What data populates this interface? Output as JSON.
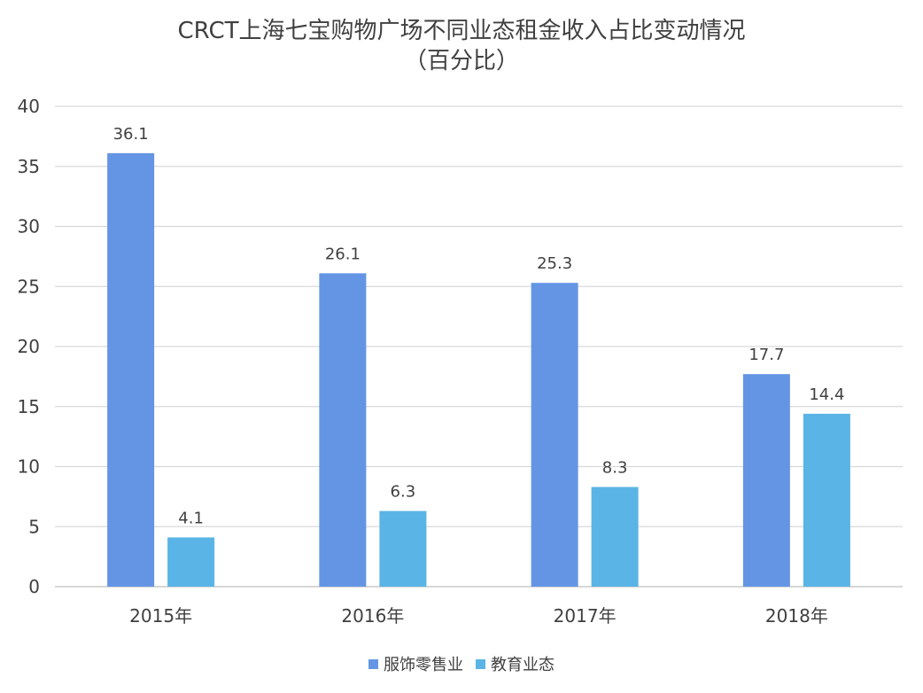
{
  "chart_data": {
    "type": "bar",
    "title": "CRCT上海七宝购物广场不同业态租金收入占比变动情况",
    "subtitle": "（百分比）",
    "categories": [
      "2015年",
      "2016年",
      "2017年",
      "2018年"
    ],
    "series": [
      {
        "name": "服饰零售业",
        "values": [
          36.1,
          26.1,
          25.3,
          17.7
        ],
        "color": "#6495E4"
      },
      {
        "name": "教育业态",
        "values": [
          4.1,
          6.3,
          8.3,
          14.4
        ],
        "color": "#5AB4E5"
      }
    ],
    "ylim": [
      0,
      40
    ],
    "yticks": [
      "0",
      "5",
      "10",
      "15",
      "20",
      "25",
      "30",
      "35",
      "40"
    ],
    "grid": true,
    "legend_position": "bottom",
    "data_labels": [
      [
        "36.1",
        "26.1",
        "25.3",
        "17.7"
      ],
      [
        "4.1",
        "6.3",
        "8.3",
        "14.4"
      ]
    ]
  }
}
